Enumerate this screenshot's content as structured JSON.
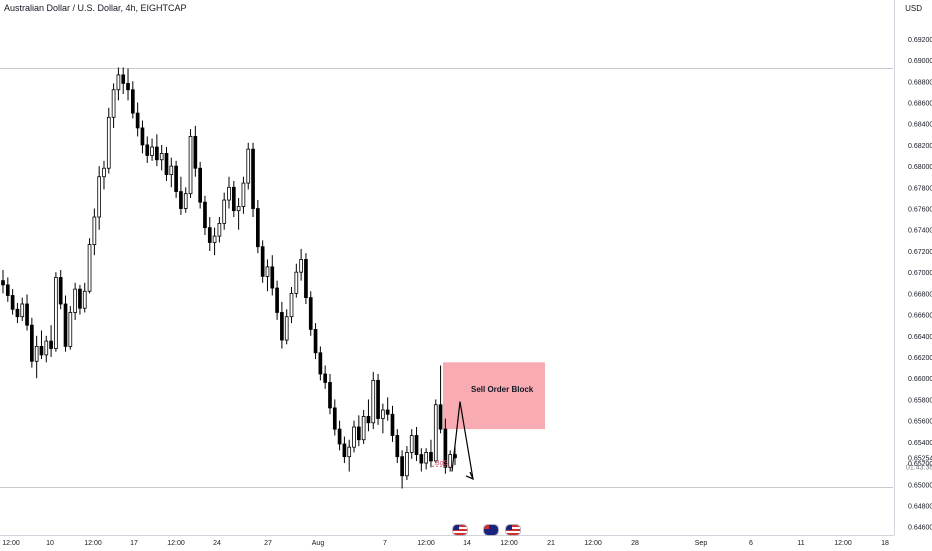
{
  "chart_title": "Australian Dollar / U.S. Dollar, 4h, EIGHTCAP",
  "currency": "USD",
  "chart_data": {
    "type": "candlestick",
    "title": "Australian Dollar / U.S. Dollar, 4h, EIGHTCAP",
    "ylim": [
      0.6455,
      0.6934
    ],
    "y_ticks": [
      "0.69200",
      "0.69000",
      "0.68800",
      "0.68600",
      "0.68400",
      "0.68200",
      "0.68000",
      "0.67800",
      "0.67600",
      "0.67400",
      "0.67200",
      "0.67000",
      "0.66800",
      "0.66600",
      "0.66400",
      "0.66200",
      "0.66000",
      "0.65800",
      "0.65600",
      "0.65400",
      "0.65200",
      "0.65000",
      "0.64800",
      "0.64600"
    ],
    "y_tick_values": [
      0.692,
      0.69,
      0.688,
      0.686,
      0.684,
      0.682,
      0.68,
      0.678,
      0.676,
      0.674,
      0.672,
      0.67,
      0.668,
      0.666,
      0.664,
      0.662,
      0.66,
      0.658,
      0.656,
      0.654,
      0.652,
      0.65,
      0.648,
      0.646
    ],
    "x_ticks": [
      "12:00",
      "10",
      "12:00",
      "17",
      "12:00",
      "24",
      "27",
      "Aug",
      "7",
      "12:00",
      "14",
      "12:00",
      "21",
      "12:00",
      "28",
      "Sep",
      "6",
      "11",
      "12:00",
      "18"
    ],
    "current_price": "0.65254",
    "countdown": "01:43:38",
    "horizontal_levels": [
      0.6892,
      0.6497
    ],
    "candles_ohlc": [
      [
        0.6692,
        0.6702,
        0.668,
        0.6688
      ],
      [
        0.6688,
        0.6695,
        0.6672,
        0.6678
      ],
      [
        0.6678,
        0.6684,
        0.666,
        0.6665
      ],
      [
        0.6665,
        0.6671,
        0.6652,
        0.6658
      ],
      [
        0.6658,
        0.6676,
        0.6654,
        0.667
      ],
      [
        0.667,
        0.6679,
        0.6645,
        0.665
      ],
      [
        0.665,
        0.6657,
        0.661,
        0.6616
      ],
      [
        0.6616,
        0.664,
        0.66,
        0.663
      ],
      [
        0.663,
        0.6645,
        0.6618,
        0.6622
      ],
      [
        0.6622,
        0.664,
        0.6615,
        0.6635
      ],
      [
        0.6635,
        0.665,
        0.662,
        0.6628
      ],
      [
        0.6628,
        0.67,
        0.6625,
        0.6695
      ],
      [
        0.6695,
        0.6702,
        0.6665,
        0.667
      ],
      [
        0.667,
        0.6678,
        0.6625,
        0.663
      ],
      [
        0.663,
        0.6668,
        0.6627,
        0.6662
      ],
      [
        0.6662,
        0.669,
        0.6655,
        0.6684
      ],
      [
        0.6684,
        0.6688,
        0.666,
        0.6666
      ],
      [
        0.6666,
        0.669,
        0.6662,
        0.6682
      ],
      [
        0.6682,
        0.6732,
        0.668,
        0.6726
      ],
      [
        0.6726,
        0.676,
        0.6716,
        0.6752
      ],
      [
        0.6752,
        0.68,
        0.674,
        0.679
      ],
      [
        0.679,
        0.6805,
        0.6778,
        0.6798
      ],
      [
        0.6798,
        0.6855,
        0.6793,
        0.6846
      ],
      [
        0.6846,
        0.6878,
        0.6836,
        0.6872
      ],
      [
        0.6872,
        0.6893,
        0.6862,
        0.6886
      ],
      [
        0.6886,
        0.6893,
        0.6868,
        0.6878
      ],
      [
        0.6878,
        0.6892,
        0.6862,
        0.6872
      ],
      [
        0.6872,
        0.688,
        0.6845,
        0.685
      ],
      [
        0.685,
        0.686,
        0.6828,
        0.6836
      ],
      [
        0.6836,
        0.6843,
        0.6812,
        0.682
      ],
      [
        0.682,
        0.6828,
        0.6803,
        0.681
      ],
      [
        0.681,
        0.6826,
        0.6805,
        0.6818
      ],
      [
        0.6818,
        0.683,
        0.68,
        0.6806
      ],
      [
        0.6806,
        0.682,
        0.6796,
        0.6812
      ],
      [
        0.6812,
        0.6818,
        0.6786,
        0.6792
      ],
      [
        0.6792,
        0.6808,
        0.678,
        0.68
      ],
      [
        0.68,
        0.6805,
        0.677,
        0.6776
      ],
      [
        0.6776,
        0.679,
        0.6754,
        0.676
      ],
      [
        0.676,
        0.678,
        0.6756,
        0.6774
      ],
      [
        0.6774,
        0.6835,
        0.677,
        0.6828
      ],
      [
        0.6828,
        0.6838,
        0.679,
        0.6798
      ],
      [
        0.6798,
        0.6804,
        0.676,
        0.6766
      ],
      [
        0.6766,
        0.6772,
        0.6735,
        0.6742
      ],
      [
        0.6742,
        0.6752,
        0.672,
        0.6728
      ],
      [
        0.6728,
        0.6742,
        0.6716,
        0.6734
      ],
      [
        0.6734,
        0.6752,
        0.6728,
        0.6746
      ],
      [
        0.6746,
        0.6775,
        0.674,
        0.6768
      ],
      [
        0.6768,
        0.679,
        0.676,
        0.678
      ],
      [
        0.678,
        0.6786,
        0.6752,
        0.6758
      ],
      [
        0.6758,
        0.677,
        0.674,
        0.6762
      ],
      [
        0.6762,
        0.679,
        0.6755,
        0.6784
      ],
      [
        0.6784,
        0.6822,
        0.6778,
        0.6816
      ],
      [
        0.6816,
        0.6822,
        0.6752,
        0.676
      ],
      [
        0.676,
        0.6768,
        0.6718,
        0.6724
      ],
      [
        0.6724,
        0.673,
        0.669,
        0.6696
      ],
      [
        0.6696,
        0.6712,
        0.6682,
        0.6705
      ],
      [
        0.6705,
        0.6716,
        0.6678,
        0.6685
      ],
      [
        0.6685,
        0.6692,
        0.6655,
        0.6662
      ],
      [
        0.6662,
        0.6672,
        0.6628,
        0.6636
      ],
      [
        0.6636,
        0.6665,
        0.6632,
        0.6658
      ],
      [
        0.6658,
        0.6686,
        0.6652,
        0.668
      ],
      [
        0.668,
        0.6708,
        0.6676,
        0.67
      ],
      [
        0.67,
        0.6722,
        0.6692,
        0.6712
      ],
      [
        0.6712,
        0.6718,
        0.667,
        0.6676
      ],
      [
        0.6676,
        0.6682,
        0.664,
        0.6646
      ],
      [
        0.6646,
        0.6652,
        0.6618,
        0.6624
      ],
      [
        0.6624,
        0.663,
        0.6598,
        0.6604
      ],
      [
        0.6604,
        0.6612,
        0.659,
        0.6596
      ],
      [
        0.6596,
        0.6604,
        0.6566,
        0.6572
      ],
      [
        0.6572,
        0.658,
        0.6546,
        0.6552
      ],
      [
        0.6552,
        0.656,
        0.6532,
        0.6538
      ],
      [
        0.6538,
        0.6545,
        0.652,
        0.6526
      ],
      [
        0.6526,
        0.6542,
        0.6512,
        0.6535
      ],
      [
        0.6535,
        0.656,
        0.653,
        0.6554
      ],
      [
        0.6554,
        0.6565,
        0.6536,
        0.6542
      ],
      [
        0.6542,
        0.657,
        0.6538,
        0.6564
      ],
      [
        0.6564,
        0.658,
        0.655,
        0.6558
      ],
      [
        0.6558,
        0.6606,
        0.6552,
        0.6598
      ],
      [
        0.6598,
        0.6604,
        0.6556,
        0.6562
      ],
      [
        0.6562,
        0.6576,
        0.6548,
        0.657
      ],
      [
        0.657,
        0.6582,
        0.656,
        0.6566
      ],
      [
        0.6566,
        0.6574,
        0.654,
        0.6546
      ],
      [
        0.6546,
        0.6552,
        0.652,
        0.6526
      ],
      [
        0.6526,
        0.6532,
        0.6496,
        0.6508
      ],
      [
        0.6508,
        0.6536,
        0.6504,
        0.653
      ],
      [
        0.653,
        0.6552,
        0.6524,
        0.6546
      ],
      [
        0.6546,
        0.6554,
        0.6522,
        0.6528
      ],
      [
        0.6528,
        0.6534,
        0.6512,
        0.652
      ],
      [
        0.652,
        0.6534,
        0.6514,
        0.653
      ],
      [
        0.653,
        0.6542,
        0.6516,
        0.6522
      ],
      [
        0.6522,
        0.658,
        0.652,
        0.6575
      ],
      [
        0.6575,
        0.6612,
        0.6548,
        0.6552
      ],
      [
        0.6552,
        0.6562,
        0.651,
        0.6516
      ],
      [
        0.6516,
        0.6532,
        0.6512,
        0.6528
      ],
      [
        0.6528,
        0.6538,
        0.6518,
        0.6525
      ]
    ],
    "annotations": {
      "zone_label": "Sell Order Block",
      "zone_top": 0.6615,
      "zone_bottom": 0.6552,
      "bos_label": "BoS",
      "bos_level": 0.6517,
      "arrow_path": [
        [
          0.6512,
          0
        ],
        [
          0.6578,
          1
        ],
        [
          0.6505,
          2
        ]
      ]
    },
    "grid": false,
    "legend": "none"
  },
  "event_flags": [
    {
      "name": "us-flag-icon",
      "type": "us"
    },
    {
      "name": "au-flag-icon",
      "type": "au"
    },
    {
      "name": "us-flag-icon-2",
      "type": "us"
    }
  ]
}
